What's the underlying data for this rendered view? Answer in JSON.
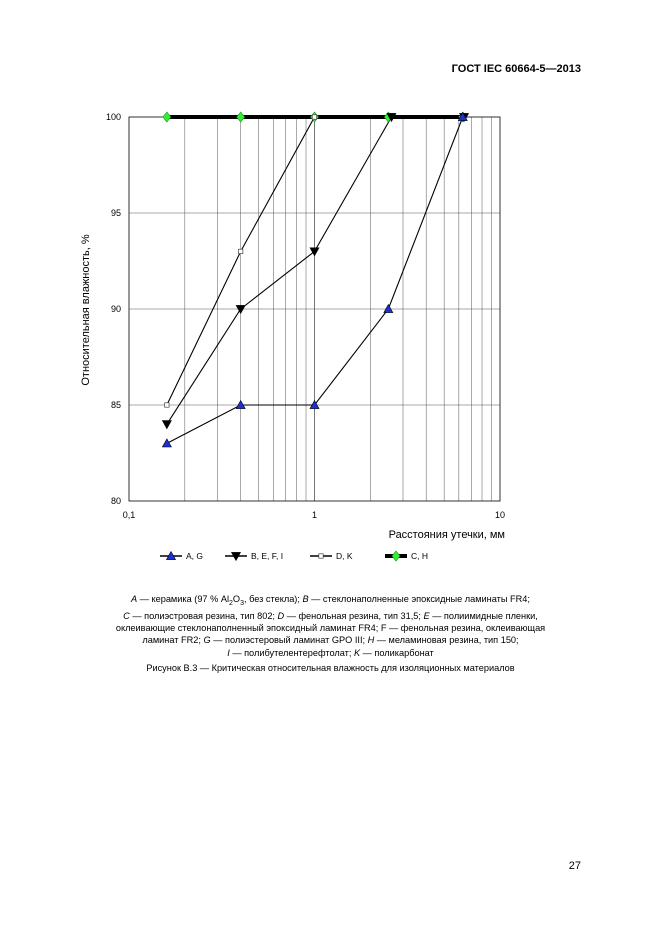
{
  "header": {
    "standard": "ГОСТ IEC 60664-5—2013"
  },
  "chart_data": {
    "type": "line",
    "title": "",
    "xlabel": "Расстояния утечки, мм",
    "ylabel": "Относительная влажность, %",
    "x_scale": "log",
    "xlim": [
      0.1,
      10
    ],
    "ylim": [
      80,
      100
    ],
    "x_ticks": [
      "0,1",
      "1",
      "10"
    ],
    "y_ticks": [
      "80",
      "85",
      "90",
      "95",
      "100"
    ],
    "grid": "on",
    "legend_position": "bottom",
    "series": [
      {
        "name": "A, G",
        "marker": "triangle-up",
        "marker_color": "#1f2fd6",
        "x": [
          0.16,
          0.4,
          1.0,
          2.5,
          6.3
        ],
        "y": [
          83,
          85,
          85,
          90,
          100
        ]
      },
      {
        "name": "B, E, F, I",
        "marker": "triangle-down",
        "marker_color": "#000000",
        "x": [
          0.16,
          0.4,
          1.0,
          2.6,
          6.4
        ],
        "y": [
          84,
          90,
          93,
          100,
          100
        ]
      },
      {
        "name": "D, K",
        "marker": "square",
        "marker_color": "#ffffff",
        "x": [
          0.16,
          0.4,
          1.0
        ],
        "y": [
          85,
          93,
          100
        ]
      },
      {
        "name": "C, H",
        "marker": "diamond",
        "marker_color": "#33ee33",
        "x": [
          0.16,
          0.4,
          1.0,
          2.5,
          6.3
        ],
        "y": [
          100,
          100,
          100,
          100,
          100
        ]
      }
    ]
  },
  "caption": {
    "line1": "A — керамика (97 % Al₂O₃, без стекла); B — стеклонаполненные эпоксидные ламинаты FR4;",
    "line2": "C — полиэстровая резина, тип 802; D — фенольная резина, тип 31,5; E — полиимидные пленки,",
    "line3": "оклеивающие стеклонаполненный эпоксидный ламинат FR4; F — фенольная резина, оклеивающая",
    "line4": "ламинат FR2; G — полиэстеровый ламинат GPO III; H — меламиновая резина, тип 150;",
    "line5": "I — полибутелентерефтолат; K — поликарбонат"
  },
  "figure_title": "Рисунок B.3 — Критическая относительная влажность для изоляционных материалов",
  "page_number": "27"
}
